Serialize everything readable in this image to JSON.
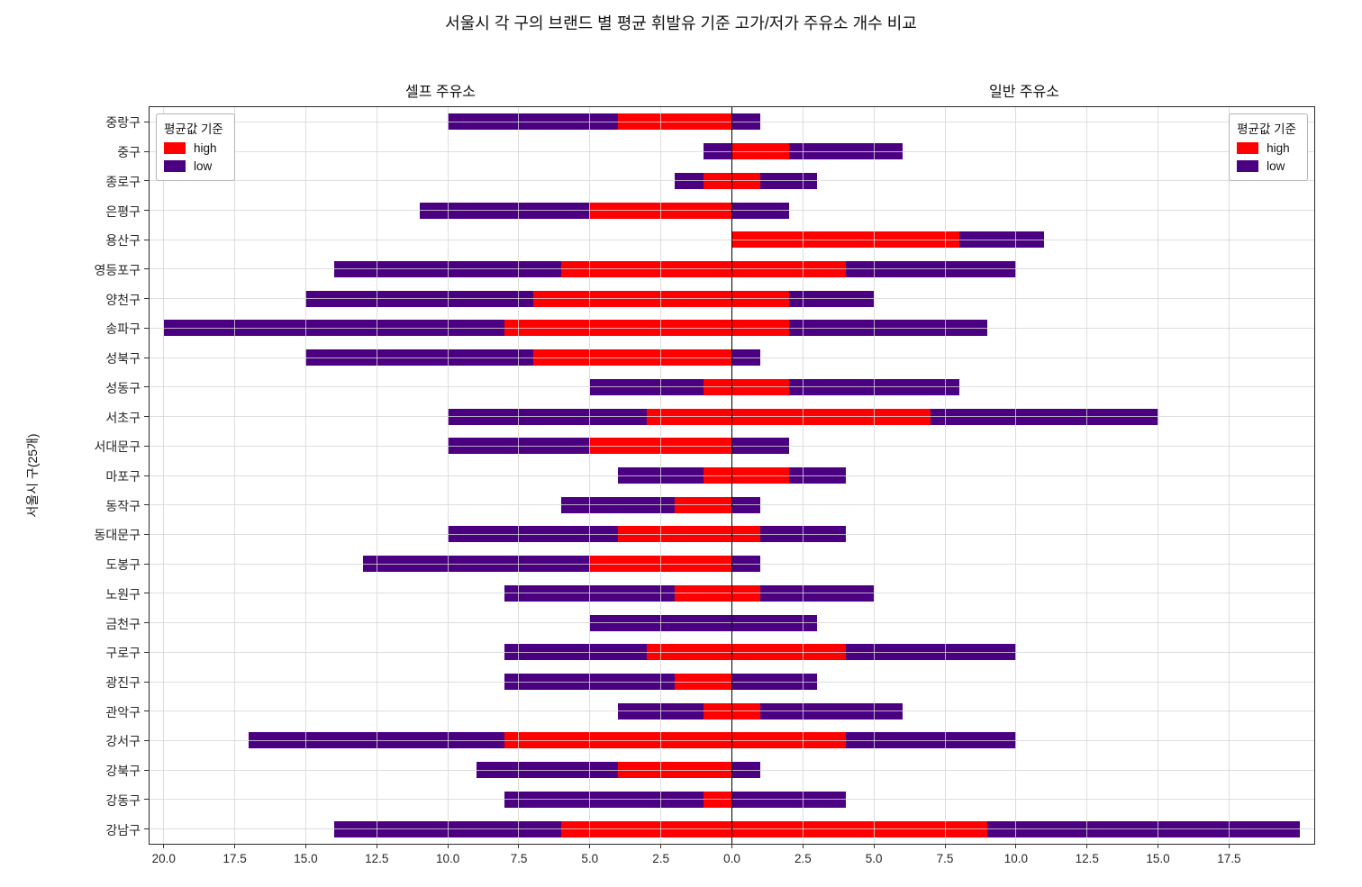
{
  "title": "서울시 각 구의 브랜드 별 평균 휘발유 기준 고가/저가 주유소 개수 비교",
  "panel_titles": {
    "left": "셀프 주유소",
    "right": "일반 주유소"
  },
  "ylabel": "서울시 구(25개)",
  "legend": {
    "title": "평균값 기준",
    "items": [
      {
        "label": "high",
        "color": "#ff0000"
      },
      {
        "label": "low",
        "color": "#4b0082"
      }
    ]
  },
  "chart_data": {
    "type": "bar",
    "orientation": "horizontal-diverging-stacked",
    "categories_order": "top-to-bottom",
    "categories": [
      "중랑구",
      "중구",
      "종로구",
      "은평구",
      "용산구",
      "영등포구",
      "양천구",
      "송파구",
      "성북구",
      "성동구",
      "서초구",
      "서대문구",
      "마포구",
      "동작구",
      "동대문구",
      "도봉구",
      "노원구",
      "금천구",
      "구로구",
      "광진구",
      "관악구",
      "강서구",
      "강북구",
      "강동구",
      "강남구"
    ],
    "series": [
      {
        "name": "셀프 high",
        "panel": "left",
        "color": "#ff0000",
        "values": [
          4,
          0,
          1,
          5,
          0,
          6,
          7,
          8,
          7,
          1,
          3,
          5,
          1,
          2,
          4,
          5,
          2,
          0,
          3,
          2,
          1,
          8,
          4,
          1,
          6
        ]
      },
      {
        "name": "셀프 low",
        "panel": "left",
        "color": "#4b0082",
        "values": [
          6,
          1,
          1,
          6,
          0,
          8,
          8,
          12,
          8,
          4,
          7,
          5,
          3,
          4,
          6,
          8,
          6,
          5,
          5,
          6,
          3,
          9,
          5,
          7,
          8
        ]
      },
      {
        "name": "일반 high",
        "panel": "right",
        "color": "#ff0000",
        "values": [
          0,
          2,
          1,
          0,
          8,
          4,
          2,
          2,
          0,
          2,
          7,
          0,
          2,
          0,
          1,
          0,
          1,
          0,
          4,
          0,
          1,
          4,
          0,
          0,
          9
        ]
      },
      {
        "name": "일반 low",
        "panel": "right",
        "color": "#4b0082",
        "values": [
          1,
          4,
          2,
          2,
          3,
          6,
          3,
          7,
          1,
          6,
          8,
          2,
          2,
          1,
          3,
          1,
          4,
          3,
          6,
          3,
          5,
          6,
          1,
          4,
          11
        ]
      }
    ],
    "xlim": [
      -20.5,
      20.5
    ],
    "grid": true,
    "x_ticks": [
      {
        "value": -20,
        "label": "20.0"
      },
      {
        "value": -17.5,
        "label": "17.5"
      },
      {
        "value": -15,
        "label": "15.0"
      },
      {
        "value": -12.5,
        "label": "12.5"
      },
      {
        "value": -10,
        "label": "10.0"
      },
      {
        "value": -7.5,
        "label": "7.5"
      },
      {
        "value": -5,
        "label": "5.0"
      },
      {
        "value": -2.5,
        "label": "2.5"
      },
      {
        "value": 0,
        "label": "0.0"
      },
      {
        "value": 2.5,
        "label": "2.5"
      },
      {
        "value": 5,
        "label": "5.0"
      },
      {
        "value": 7.5,
        "label": "7.5"
      },
      {
        "value": 10,
        "label": "10.0"
      },
      {
        "value": 12.5,
        "label": "12.5"
      },
      {
        "value": 15,
        "label": "15.0"
      },
      {
        "value": 17.5,
        "label": "17.5"
      }
    ],
    "colors": {
      "high": "#ff0000",
      "low": "#4b0082"
    }
  }
}
